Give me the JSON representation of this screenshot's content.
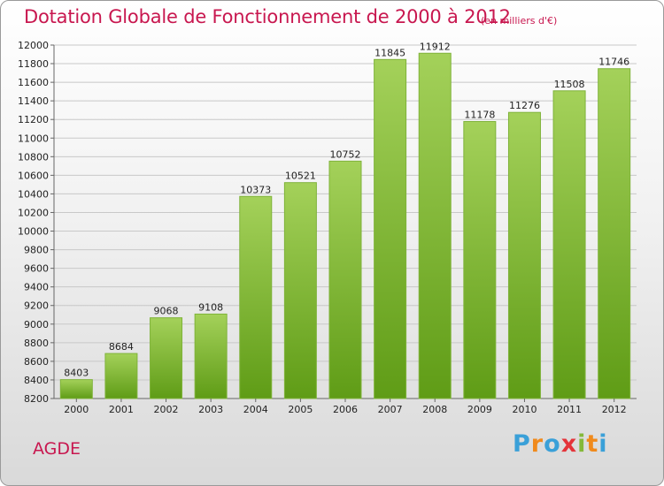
{
  "header": {
    "title": "Dotation Globale de Fonctionnement de 2000 à 2012",
    "subtitle": "(en milliers d'€)"
  },
  "commune": "AGDE",
  "logo": {
    "letters": [
      "P",
      "r",
      "o",
      "x",
      "i",
      "t",
      "i"
    ],
    "colors": [
      "#3aa0d8",
      "#f08a1c",
      "#3aa0d8",
      "#e4343a",
      "#84b93a",
      "#f08a1c",
      "#3aa0d8"
    ]
  },
  "colors": {
    "bar_light": "#a4d15a",
    "bar_dark": "#5f9c16",
    "grid": "#c8c8c8",
    "accent": "#c8174f"
  },
  "chart_data": {
    "type": "bar",
    "title": "Dotation Globale de Fonctionnement de 2000 à 2012",
    "subtitle": "(en milliers d'€)",
    "xlabel": "",
    "ylabel": "",
    "categories": [
      "2000",
      "2001",
      "2002",
      "2003",
      "2004",
      "2005",
      "2006",
      "2007",
      "2008",
      "2009",
      "2010",
      "2011",
      "2012"
    ],
    "values": [
      8403,
      8684,
      9068,
      9108,
      10373,
      10521,
      10752,
      11845,
      11912,
      11178,
      11276,
      11508,
      11746
    ],
    "ylim": [
      8200,
      12000
    ],
    "ytick_step": 200,
    "grid": true,
    "legend": "none"
  }
}
